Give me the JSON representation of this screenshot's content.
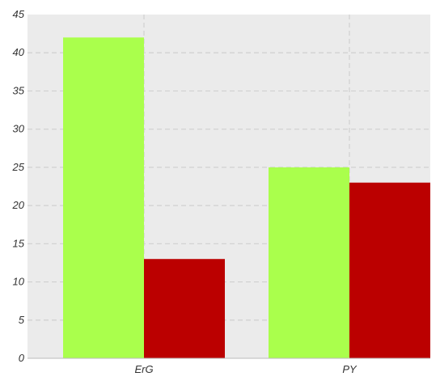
{
  "chart_data": {
    "type": "bar",
    "categories": [
      "ErG",
      "PY"
    ],
    "series": [
      {
        "values": [
          42,
          25
        ],
        "color": "#aaff4c"
      },
      {
        "values": [
          13,
          23
        ],
        "color": "#bb0000"
      }
    ],
    "title": "",
    "xlabel": "",
    "ylabel": "",
    "ylim": [
      0,
      45
    ],
    "yticks": [
      "0",
      "5",
      "10",
      "15",
      "20",
      "25",
      "30",
      "35",
      "40",
      "45"
    ],
    "grid": true,
    "legend": "none",
    "background_color": "#ebebeb",
    "grid_color": "#d0d0d0"
  }
}
